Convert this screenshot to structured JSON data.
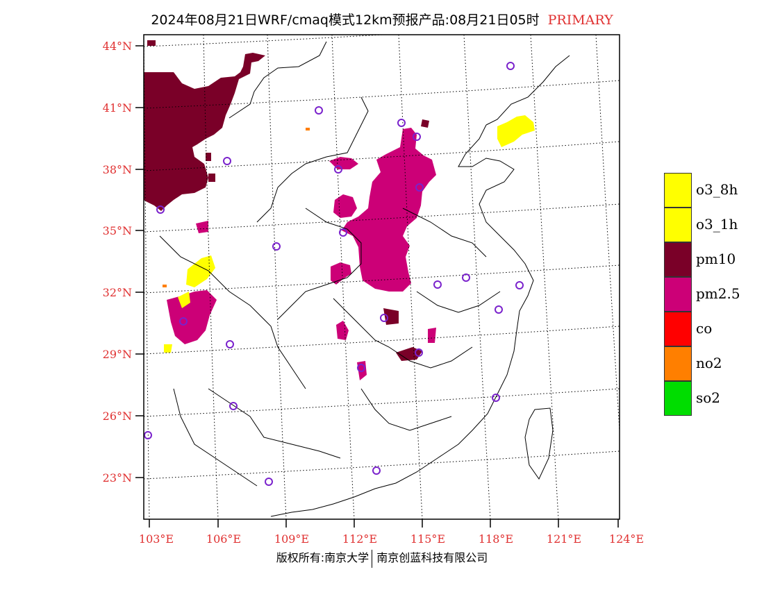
{
  "title": {
    "main": "2024年08月21日WRF/cmaq模式12km预报产品:08月21日05时",
    "tag": "PRIMARY",
    "tag_color": "#e03030"
  },
  "footer": {
    "left": "版权所有:南京大学",
    "right": "南京创蓝科技有限公司"
  },
  "axes": {
    "lat_labels": [
      "44°N",
      "41°N",
      "38°N",
      "35°N",
      "32°N",
      "29°N",
      "26°N",
      "23°N"
    ],
    "lon_labels": [
      "103°E",
      "106°E",
      "109°E",
      "112°E",
      "115°E",
      "118°E",
      "121°E",
      "124°E"
    ],
    "label_color": "#e03030"
  },
  "legend": [
    {
      "label": "o3_8h",
      "color": "#ffff00"
    },
    {
      "label": "o3_1h",
      "color": "#ffff00"
    },
    {
      "label": "pm10",
      "color": "#7a0028"
    },
    {
      "label": "pm2.5",
      "color": "#cc0077"
    },
    {
      "label": "co",
      "color": "#ff0000"
    },
    {
      "label": "no2",
      "color": "#ff7f00"
    },
    {
      "label": "so2",
      "color": "#00dd00"
    }
  ],
  "map": {
    "pollutant_colors": {
      "pm10": "#7a0028",
      "pm25": "#cc0077",
      "o3": "#ffff00",
      "no2": "#ff7f00"
    },
    "station_marker_color": "#7a22cc"
  }
}
